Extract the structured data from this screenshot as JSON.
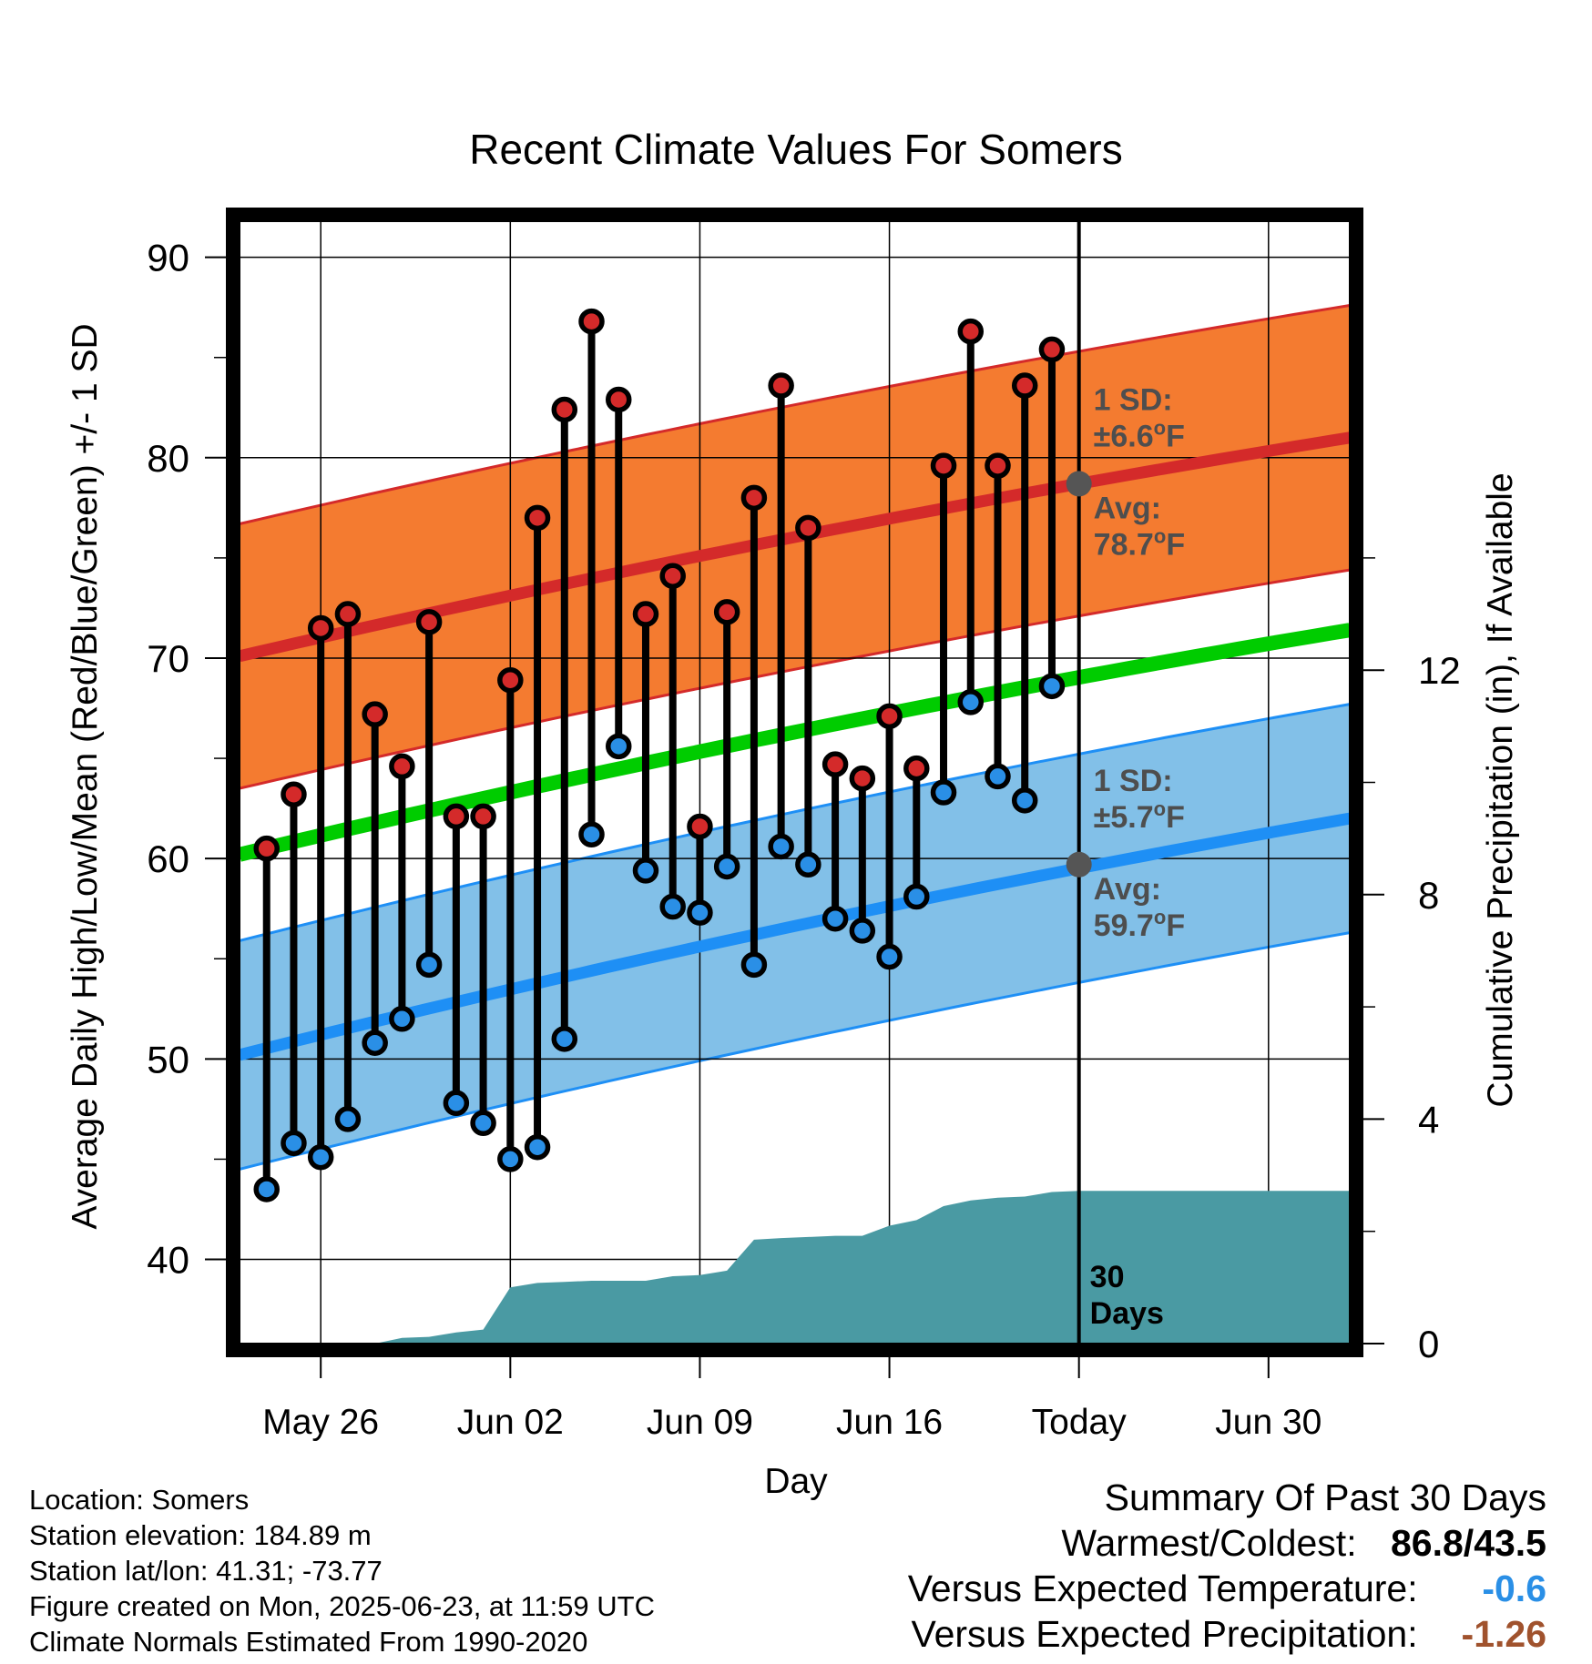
{
  "chart_data": {
    "type": "line",
    "title": "Recent Climate Values For Somers",
    "xlabel": "Day",
    "ylabel": "Average Daily High/Low/Mean (Red/Blue/Green) +/- 1 SD",
    "y2label": "Cumulative Precipitation (in), If Available",
    "ylim": [
      35.8,
      91.8
    ],
    "y2lim": [
      0,
      20
    ],
    "yticks": [
      40,
      50,
      60,
      70,
      80,
      90
    ],
    "y2ticks": [
      0,
      4,
      8,
      12
    ],
    "xlim": [
      "2025-05-23",
      "2025-07-03"
    ],
    "xticks": [
      {
        "date": "2025-05-26",
        "label": "May 26"
      },
      {
        "date": "2025-06-02",
        "label": "Jun 02"
      },
      {
        "date": "2025-06-09",
        "label": "Jun 09"
      },
      {
        "date": "2025-06-16",
        "label": "Jun 16"
      },
      {
        "date": "2025-06-23",
        "label": "Today"
      },
      {
        "date": "2025-06-30",
        "label": "Jun 30"
      }
    ],
    "today": "2025-06-23",
    "grid": true,
    "observed": {
      "dates": [
        "2025-05-24",
        "2025-05-25",
        "2025-05-26",
        "2025-05-27",
        "2025-05-28",
        "2025-05-29",
        "2025-05-30",
        "2025-05-31",
        "2025-06-01",
        "2025-06-02",
        "2025-06-03",
        "2025-06-04",
        "2025-06-05",
        "2025-06-06",
        "2025-06-07",
        "2025-06-08",
        "2025-06-09",
        "2025-06-10",
        "2025-06-11",
        "2025-06-12",
        "2025-06-13",
        "2025-06-14",
        "2025-06-15",
        "2025-06-16",
        "2025-06-17",
        "2025-06-18",
        "2025-06-19",
        "2025-06-20",
        "2025-06-21",
        "2025-06-22"
      ],
      "high": [
        60.5,
        63.2,
        71.5,
        72.2,
        67.2,
        64.6,
        71.8,
        62.1,
        62.1,
        68.9,
        77.0,
        82.4,
        86.8,
        82.9,
        72.2,
        74.1,
        61.6,
        72.3,
        78.0,
        83.6,
        76.5,
        64.7,
        64.0,
        67.1,
        64.5,
        79.6,
        86.3,
        79.6,
        83.6,
        85.4
      ],
      "low": [
        43.5,
        45.8,
        45.1,
        47.0,
        50.8,
        52.0,
        54.7,
        47.8,
        46.8,
        45.0,
        45.6,
        51.0,
        61.2,
        65.6,
        59.4,
        57.6,
        57.3,
        59.6,
        54.7,
        60.6,
        59.7,
        57.0,
        56.4,
        55.1,
        58.1,
        63.3,
        67.8,
        64.1,
        62.9,
        68.6
      ]
    },
    "normals": {
      "dates": [
        "2025-05-23",
        "2025-07-03"
      ],
      "high_avg": [
        70.1,
        81.0
      ],
      "low_avg": [
        50.2,
        62.0
      ],
      "mean_avg": [
        60.2,
        71.4
      ],
      "high_sd": 6.6,
      "low_sd": 5.7
    },
    "precipitation": {
      "dates": [
        "2025-05-23",
        "2025-05-28",
        "2025-05-29",
        "2025-05-30",
        "2025-05-31",
        "2025-06-01",
        "2025-06-02",
        "2025-06-03",
        "2025-06-04",
        "2025-06-05",
        "2025-06-06",
        "2025-06-07",
        "2025-06-08",
        "2025-06-09",
        "2025-06-10",
        "2025-06-11",
        "2025-06-12",
        "2025-06-13",
        "2025-06-14",
        "2025-06-15",
        "2025-06-16",
        "2025-06-17",
        "2025-06-18",
        "2025-06-19",
        "2025-06-20",
        "2025-06-21",
        "2025-06-22",
        "2025-06-23",
        "2025-07-03"
      ],
      "cumulative": [
        0,
        0,
        0.1,
        0.12,
        0.2,
        0.25,
        1.0,
        1.08,
        1.1,
        1.12,
        1.12,
        1.12,
        1.2,
        1.22,
        1.3,
        1.85,
        1.88,
        1.9,
        1.92,
        1.92,
        2.1,
        2.2,
        2.45,
        2.55,
        2.6,
        2.62,
        2.7,
        2.72,
        2.72
      ]
    },
    "annotations": {
      "high_sd_label": "1 SD:",
      "high_sd_value": "±6.6",
      "high_avg_label": "Avg:",
      "high_avg_value": "78.7",
      "low_sd_label": "1 SD:",
      "low_sd_value": "±5.7",
      "low_avg_label": "Avg:",
      "low_avg_value": "59.7",
      "degree": "o",
      "unit": "F",
      "days_count": "30",
      "days_word": "Days"
    },
    "colors": {
      "high_band": "#f47b30",
      "high_line": "#d42a2a",
      "low_band": "#82c0e8",
      "low_line": "#1e8ff5",
      "mean_line": "#00cc00",
      "precip": "#4a9aa3",
      "high_dot": "#d42a2a",
      "low_dot": "#2a8fe6",
      "annotation": "#4e4e4e"
    }
  },
  "station_info": {
    "location": "Location: Somers",
    "elevation": "Station elevation: 184.89 m",
    "latlon": "Station lat/lon: 41.31; -73.77",
    "created": "Figure created on Mon, 2025-06-23, at 11:59 UTC",
    "normals": "Climate Normals Estimated From 1990-2020"
  },
  "summary": {
    "title": "Summary Of Past 30 Days",
    "warmest_coldest_label": "Warmest/Coldest:",
    "warmest_coldest_value": "86.8/43.5",
    "temp_label": "Versus Expected Temperature:",
    "temp_value": "-0.6",
    "temp_color": "#2a8fe6",
    "precip_label": "Versus Expected Precipitation:",
    "precip_value": "-1.26",
    "precip_color": "#a0522d"
  }
}
